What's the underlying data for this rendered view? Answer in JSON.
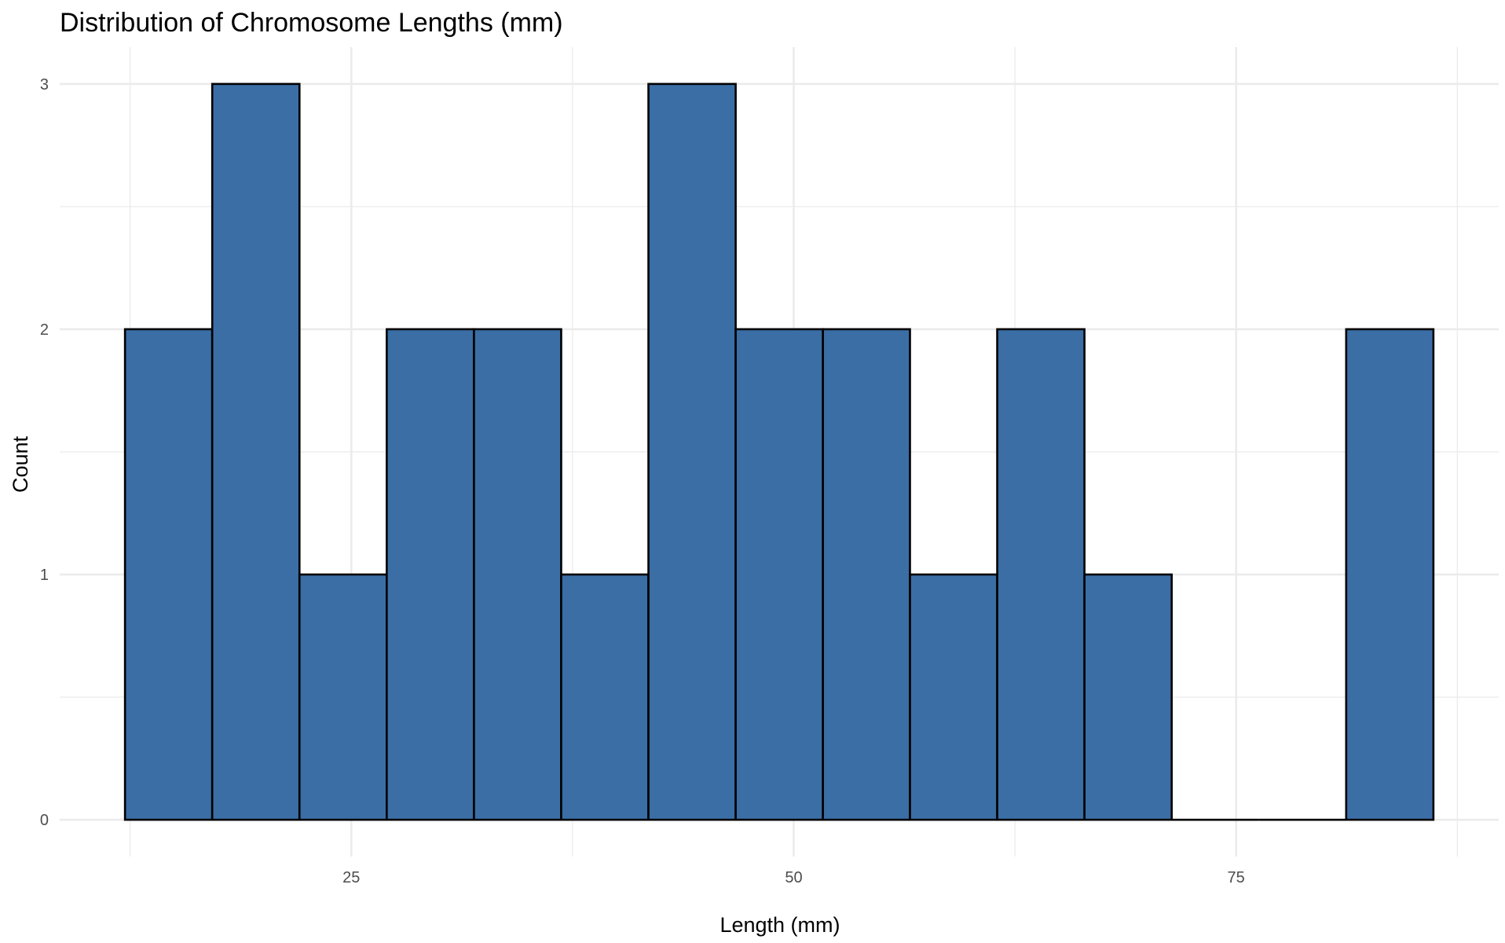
{
  "chart_data": {
    "type": "bar",
    "title": "Distribution of Chromosome Lengths (mm)",
    "xlabel": "Length (mm)",
    "ylabel": "Count",
    "bin_width": 4.929,
    "bins": [
      {
        "x_start": 12.21,
        "x_end": 17.14,
        "count": 2
      },
      {
        "x_start": 17.14,
        "x_end": 22.07,
        "count": 3
      },
      {
        "x_start": 22.07,
        "x_end": 27.0,
        "count": 1
      },
      {
        "x_start": 27.0,
        "x_end": 31.93,
        "count": 2
      },
      {
        "x_start": 31.93,
        "x_end": 36.86,
        "count": 2
      },
      {
        "x_start": 36.86,
        "x_end": 41.79,
        "count": 1
      },
      {
        "x_start": 41.79,
        "x_end": 46.72,
        "count": 3
      },
      {
        "x_start": 46.72,
        "x_end": 51.65,
        "count": 2
      },
      {
        "x_start": 51.65,
        "x_end": 56.57,
        "count": 2
      },
      {
        "x_start": 56.57,
        "x_end": 61.5,
        "count": 1
      },
      {
        "x_start": 61.5,
        "x_end": 66.43,
        "count": 2
      },
      {
        "x_start": 66.43,
        "x_end": 71.36,
        "count": 1
      },
      {
        "x_start": 71.36,
        "x_end": 76.29,
        "count": 0
      },
      {
        "x_start": 76.29,
        "x_end": 81.22,
        "count": 0
      },
      {
        "x_start": 81.22,
        "x_end": 86.15,
        "count": 2
      }
    ],
    "xlim": [
      8.52,
      89.84
    ],
    "ylim": [
      -0.15,
      3.15
    ],
    "x_major_ticks": [
      25,
      50,
      75
    ],
    "x_minor_ticks": [
      12.5,
      37.5,
      62.5,
      87.5
    ],
    "y_major_ticks": [
      0,
      1,
      2,
      3
    ],
    "y_minor_ticks": [
      0.5,
      1.5,
      2.5
    ],
    "x_tick_labels": [
      "25",
      "50",
      "75"
    ],
    "y_tick_labels": [
      "0",
      "1",
      "2",
      "3"
    ],
    "grid": true,
    "legend": "none",
    "bar_fill": "#3a6ea5",
    "bar_outline": "#000000",
    "grid_color": "#ebebeb",
    "background": "#ffffff"
  }
}
